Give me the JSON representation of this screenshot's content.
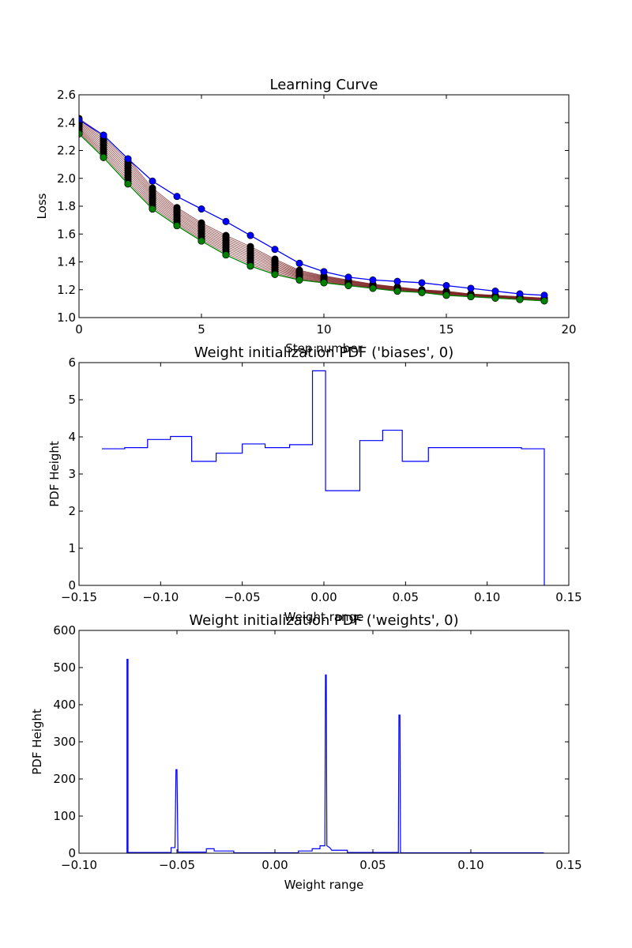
{
  "chart_data": [
    {
      "type": "line",
      "title": "Learning Curve",
      "xlabel": "Step number",
      "ylabel": "Loss",
      "xlim": [
        0,
        20
      ],
      "ylim": [
        1.0,
        2.6
      ],
      "xticks": [
        "0",
        "5",
        "10",
        "15",
        "20"
      ],
      "yticks": [
        "1.0",
        "1.2",
        "1.4",
        "1.6",
        "1.8",
        "2.0",
        "2.2",
        "2.4",
        "2.6"
      ],
      "x": [
        0,
        1,
        2,
        3,
        4,
        5,
        6,
        7,
        8,
        9,
        10,
        11,
        12,
        13,
        14,
        15,
        16,
        17,
        18,
        19
      ],
      "bundle_color": "#7a1f1f",
      "bundle_marker_color": "#000000",
      "series": [
        {
          "color": "#0000ff",
          "values": [
            2.42,
            2.31,
            2.14,
            1.98,
            1.87,
            1.78,
            1.69,
            1.59,
            1.49,
            1.39,
            1.33,
            1.29,
            1.27,
            1.26,
            1.25,
            1.23,
            1.21,
            1.19,
            1.17,
            1.16
          ]
        },
        {
          "color": "#008000",
          "values": [
            2.32,
            2.15,
            1.96,
            1.78,
            1.66,
            1.55,
            1.45,
            1.37,
            1.31,
            1.27,
            1.25,
            1.23,
            1.21,
            1.19,
            1.18,
            1.16,
            1.15,
            1.14,
            1.13,
            1.12
          ]
        }
      ],
      "bundle": {
        "top": [
          2.43,
          2.31,
          2.14,
          1.93,
          1.79,
          1.68,
          1.59,
          1.51,
          1.42,
          1.34,
          1.3,
          1.27,
          1.24,
          1.22,
          1.2,
          1.19,
          1.17,
          1.16,
          1.15,
          1.14
        ],
        "bottom": [
          2.32,
          2.15,
          1.96,
          1.78,
          1.66,
          1.55,
          1.45,
          1.37,
          1.31,
          1.27,
          1.25,
          1.23,
          1.21,
          1.19,
          1.18,
          1.16,
          1.15,
          1.14,
          1.13,
          1.12
        ],
        "count": 12
      }
    },
    {
      "type": "line",
      "title": "Weight initialization PDF ('biases', 0)",
      "xlabel": "Weight range",
      "ylabel": "PDF Height",
      "xlim": [
        -0.15,
        0.15
      ],
      "ylim": [
        0,
        6
      ],
      "xticks": [
        "−0.15",
        "−0.10",
        "−0.05",
        "0.00",
        "0.05",
        "0.10",
        "0.15"
      ],
      "yticks": [
        "0",
        "1",
        "2",
        "3",
        "4",
        "5",
        "6"
      ],
      "color": "#0000ff",
      "steps": [
        [
          -0.136,
          3.68
        ],
        [
          -0.122,
          3.71
        ],
        [
          -0.108,
          3.93
        ],
        [
          -0.094,
          4.01
        ],
        [
          -0.081,
          3.34
        ],
        [
          -0.066,
          3.56
        ],
        [
          -0.05,
          3.81
        ],
        [
          -0.036,
          3.71
        ],
        [
          -0.021,
          3.79
        ],
        [
          -0.007,
          5.78
        ],
        [
          0.001,
          2.55
        ],
        [
          0.022,
          3.9
        ],
        [
          0.036,
          4.18
        ],
        [
          0.048,
          3.34
        ],
        [
          0.064,
          3.71
        ],
        [
          0.121,
          3.68
        ],
        [
          0.135,
          0.0
        ]
      ],
      "end_x": 0.135
    },
    {
      "type": "line",
      "title": "Weight initialization PDF ('weights', 0)",
      "xlabel": "Weight range",
      "ylabel": "PDF Height",
      "xlim": [
        -0.1,
        0.15
      ],
      "ylim": [
        0,
        600
      ],
      "xticks": [
        "−0.10",
        "−0.05",
        "0.00",
        "0.05",
        "0.10",
        "0.15"
      ],
      "yticks": [
        "0",
        "100",
        "200",
        "300",
        "400",
        "500",
        "600"
      ],
      "color": "#0000ff",
      "points": [
        [
          -0.0755,
          0
        ],
        [
          -0.0755,
          522
        ],
        [
          -0.075,
          522
        ],
        [
          -0.075,
          2
        ],
        [
          -0.053,
          2
        ],
        [
          -0.053,
          15
        ],
        [
          -0.051,
          15
        ],
        [
          -0.0505,
          225
        ],
        [
          -0.05,
          225
        ],
        [
          -0.0495,
          3
        ],
        [
          -0.035,
          3
        ],
        [
          -0.035,
          12
        ],
        [
          -0.031,
          12
        ],
        [
          -0.031,
          6
        ],
        [
          -0.021,
          6
        ],
        [
          -0.021,
          1
        ],
        [
          0.012,
          1
        ],
        [
          0.012,
          6
        ],
        [
          0.019,
          6
        ],
        [
          0.019,
          12
        ],
        [
          0.023,
          12
        ],
        [
          0.023,
          20
        ],
        [
          0.0255,
          20
        ],
        [
          0.0258,
          480
        ],
        [
          0.0262,
          480
        ],
        [
          0.0265,
          20
        ],
        [
          0.028,
          15
        ],
        [
          0.029,
          8
        ],
        [
          0.037,
          8
        ],
        [
          0.037,
          2
        ],
        [
          0.063,
          2
        ],
        [
          0.0633,
          372
        ],
        [
          0.0638,
          372
        ],
        [
          0.0641,
          1
        ],
        [
          0.137,
          1
        ],
        [
          0.137,
          0
        ]
      ]
    }
  ]
}
